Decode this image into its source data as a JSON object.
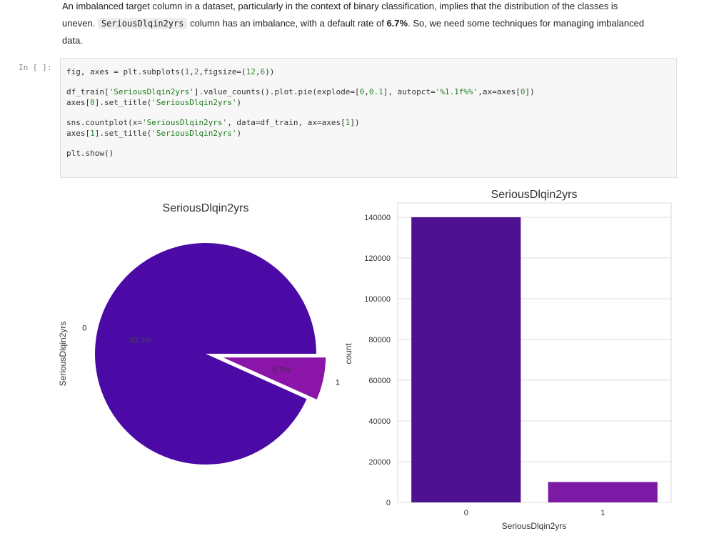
{
  "markdown": {
    "line1": "An imbalanced target column in a dataset, particularly in the context of binary classification, implies that the distribution of the classes is",
    "line2_pre": "uneven.",
    "line2_code": "SeriousDlqin2yrs",
    "line2_mid": "column has an imbalance, with a default rate of",
    "line2_bold": "6.7%",
    "line2_post": ". So, we need some techniques for managing imbalanced",
    "line3": "data."
  },
  "cell": {
    "prompt": "In [ ]:",
    "code": {
      "l1a": "fig, axes = plt.subplots(",
      "l1b": "1",
      "l1c": ",",
      "l1d": "2",
      "l1e": ",figsize=(",
      "l1f": "12",
      "l1g": ",",
      "l1h": "6",
      "l1i": "))",
      "l2a": "df_train[",
      "l2b": "'SeriousDlqin2yrs'",
      "l2c": "].value_counts().plot.pie(explode=[",
      "l2d": "0",
      "l2e": ",",
      "l2f": "0.1",
      "l2g": "], autopct=",
      "l2h": "'%1.1f%%'",
      "l2i": ",ax=axes[",
      "l2j": "0",
      "l2k": "])",
      "l3a": "axes[",
      "l3b": "0",
      "l3c": "].set_title(",
      "l3d": "'SeriousDlqin2yrs'",
      "l3e": ")",
      "l4a": "sns.countplot(x=",
      "l4b": "'SeriousDlqin2yrs'",
      "l4c": ", data=df_train, ax=axes[",
      "l4d": "1",
      "l4e": "])",
      "l5a": "axes[",
      "l5b": "1",
      "l5c": "].set_title(",
      "l5d": "'SeriousDlqin2yrs'",
      "l5e": ")",
      "l6": "plt.show()"
    }
  },
  "chart_data": [
    {
      "type": "pie",
      "title": "SeriousDlqin2yrs",
      "ylabel": "SeriousDlqin2yrs",
      "labels": [
        "0",
        "1"
      ],
      "values": [
        93.3,
        6.7
      ],
      "pct_labels": [
        "93.3%",
        "6.7%"
      ],
      "explode": [
        0,
        0.1
      ],
      "colors": [
        "#4b0aa5",
        "#8b15a8"
      ]
    },
    {
      "type": "bar",
      "title": "SeriousDlqin2yrs",
      "xlabel": "SeriousDlqin2yrs",
      "ylabel": "count",
      "categories": [
        "0",
        "1"
      ],
      "values": [
        139974,
        10026
      ],
      "ylim": [
        0,
        147000
      ],
      "yticks": [
        0,
        20000,
        40000,
        60000,
        80000,
        100000,
        120000,
        140000
      ],
      "ytick_labels": [
        "0",
        "20000",
        "40000",
        "60000",
        "80000",
        "100000",
        "120000",
        "140000"
      ],
      "grid": true,
      "colors": [
        "#4e1290",
        "#7c1aa5"
      ]
    }
  ]
}
